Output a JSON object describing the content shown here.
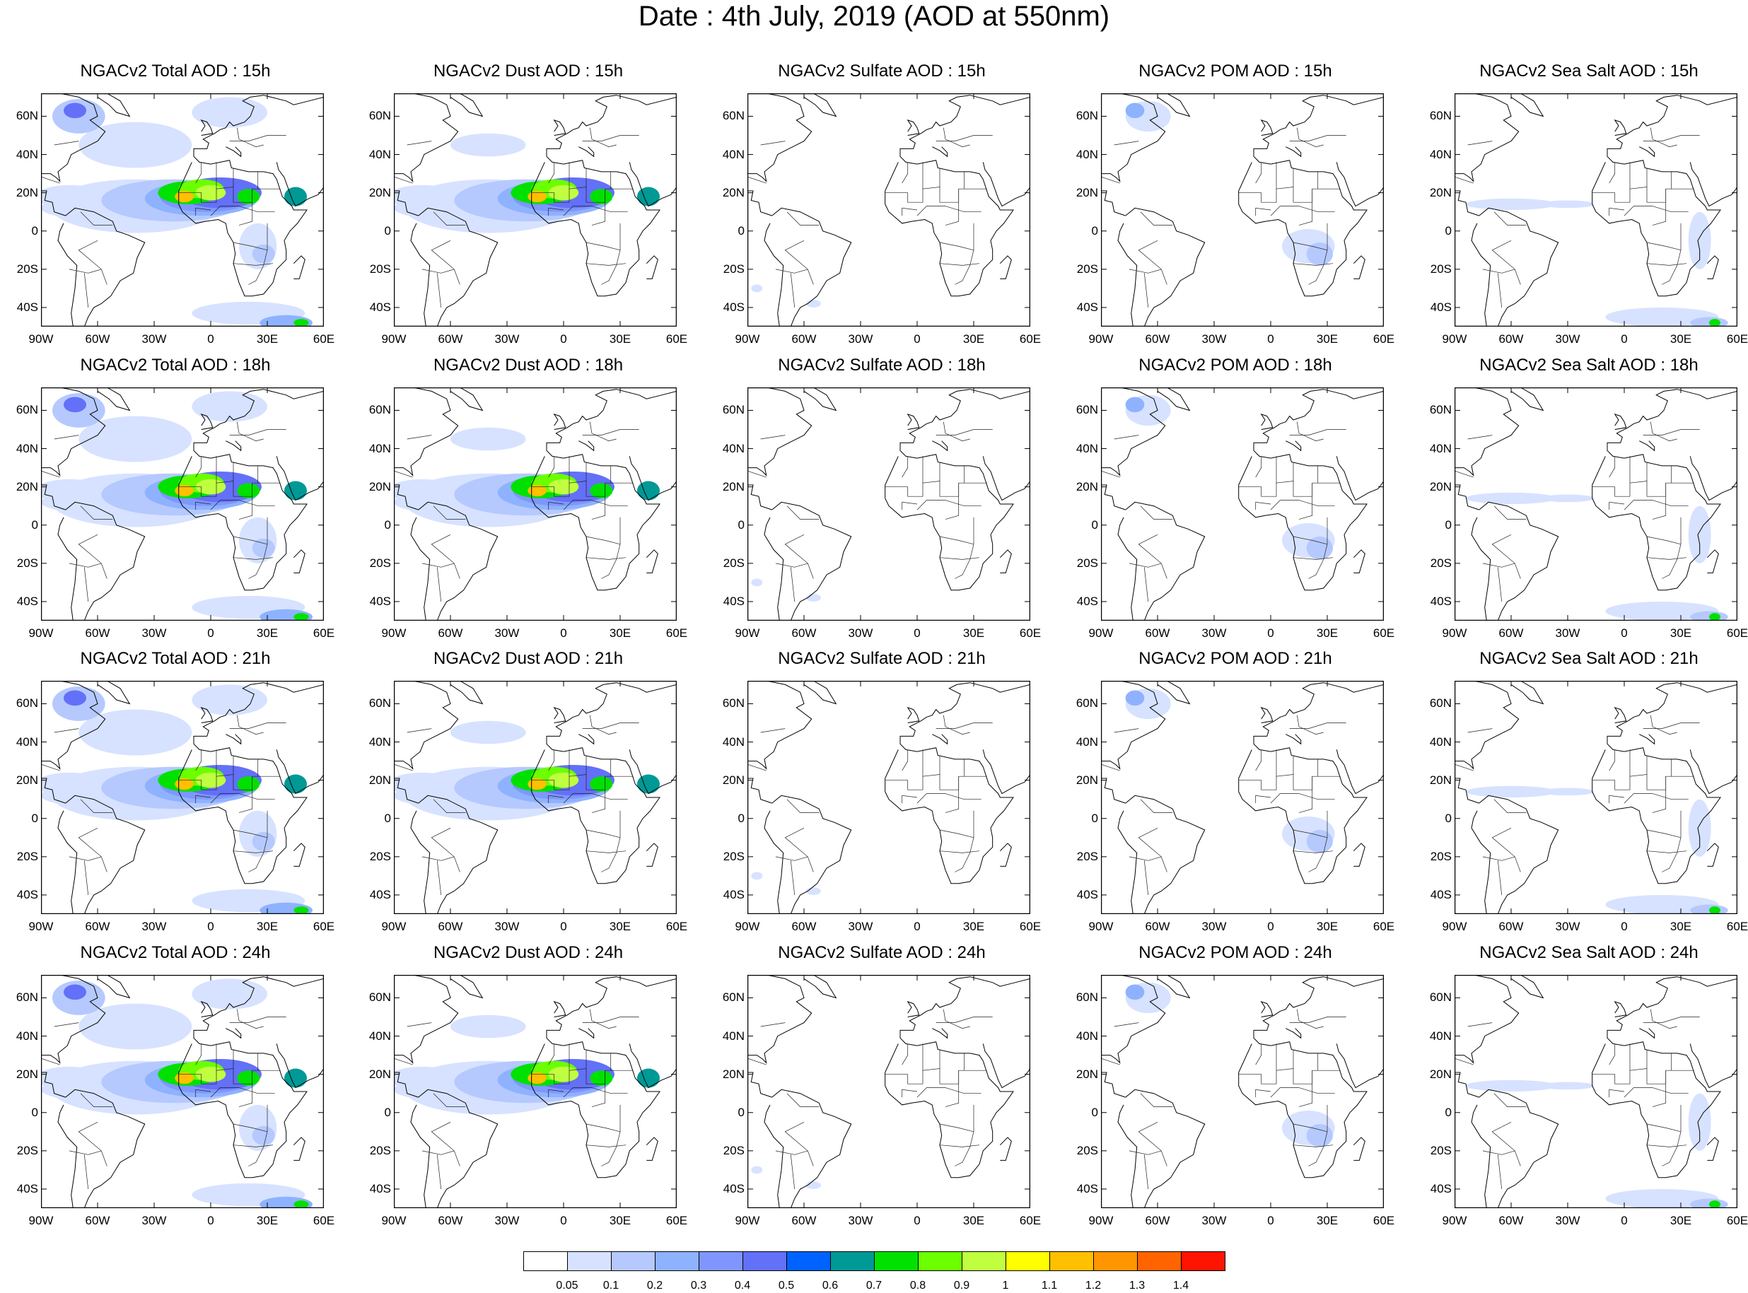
{
  "title": "Date : 4th July, 2019 (AOD at 550nm)",
  "species": [
    "total",
    "dust",
    "sulfate",
    "pom",
    "seasalt"
  ],
  "hours": [
    "15h",
    "18h",
    "21h",
    "24h"
  ],
  "panel_titles": [
    [
      "NGACv2 Total AOD : 15h",
      "NGACv2 Dust AOD : 15h",
      "NGACv2 Sulfate AOD : 15h",
      "NGACv2 POM AOD : 15h",
      "NGACv2 Sea Salt AOD : 15h"
    ],
    [
      "NGACv2 Total AOD : 18h",
      "NGACv2 Dust AOD : 18h",
      "NGACv2 Sulfate AOD : 18h",
      "NGACv2 POM AOD : 18h",
      "NGACv2 Sea Salt AOD : 18h"
    ],
    [
      "NGACv2 Total AOD : 21h",
      "NGACv2 Dust AOD : 21h",
      "NGACv2 Sulfate AOD : 21h",
      "NGACv2 POM AOD : 21h",
      "NGACv2 Sea Salt AOD : 21h"
    ],
    [
      "NGACv2 Total AOD : 24h",
      "NGACv2 Dust AOD : 24h",
      "NGACv2 Sulfate AOD : 24h",
      "NGACv2 POM AOD : 24h",
      "NGACv2 Sea Salt  AOD : 24h"
    ]
  ],
  "map_extent": {
    "lon": [
      -90,
      60
    ],
    "lat": [
      -50,
      72
    ]
  },
  "lat_ticks": [
    "60N",
    "40N",
    "20N",
    "0",
    "20S",
    "40S"
  ],
  "lat_values": [
    60,
    40,
    20,
    0,
    -20,
    -40
  ],
  "lon_ticks": [
    "90W",
    "60W",
    "30W",
    "0",
    "30E",
    "60E"
  ],
  "lon_values": [
    -90,
    -60,
    -30,
    0,
    30,
    60
  ],
  "lon_ticks_pom_row4": [
    "90W",
    "60W",
    "30W",
    "0",
    "30E",
    "60E"
  ],
  "colorbar": {
    "labels": [
      "0.05",
      "0.1",
      "0.2",
      "0.3",
      "0.4",
      "0.5",
      "0.6",
      "0.7",
      "0.8",
      "0.9",
      "1",
      "1.1",
      "1.2",
      "1.3",
      "1.4"
    ],
    "colors": [
      "#ffffff",
      "#d6e2ff",
      "#b5c9ff",
      "#8eb2ff",
      "#7f96ff",
      "#6370f8",
      "#0062ff",
      "#009996",
      "#00e100",
      "#6bff00",
      "#c0ff40",
      "#ffff00",
      "#ffc000",
      "#ff9600",
      "#ff6400",
      "#ff1400"
    ]
  },
  "colors": {
    "land_outline": "#000000",
    "background": "#ffffff"
  }
}
